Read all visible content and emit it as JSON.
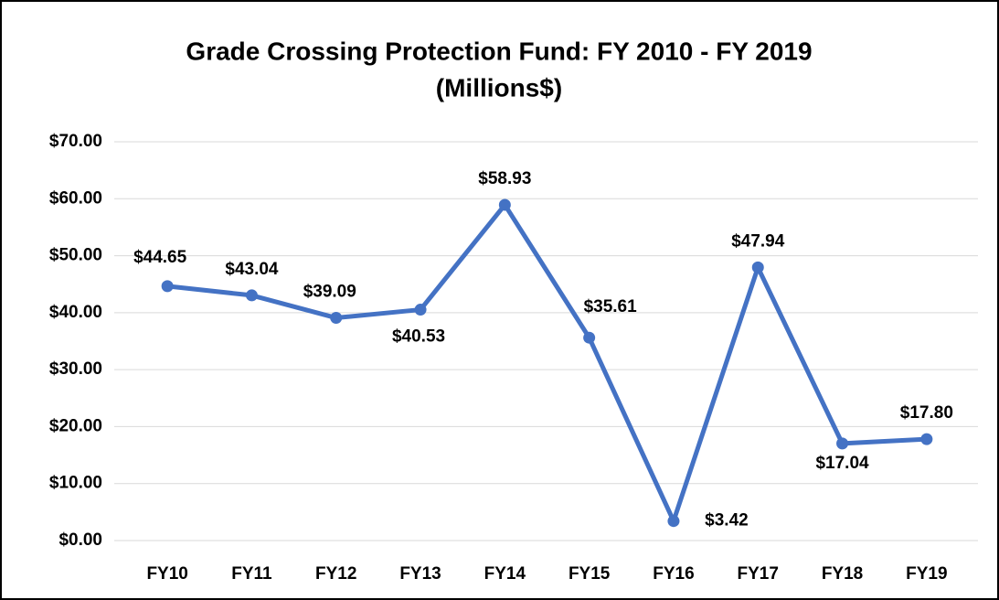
{
  "chart_data": {
    "type": "line",
    "title": "Grade Crossing Protection Fund: FY 2010 - FY 2019",
    "subtitle": "(Millions$)",
    "categories": [
      "FY10",
      "FY11",
      "FY12",
      "FY13",
      "FY14",
      "FY15",
      "FY16",
      "FY17",
      "FY18",
      "FY19"
    ],
    "series": [
      {
        "color": "#4472c4",
        "values": [
          44.65,
          43.04,
          39.09,
          40.53,
          58.93,
          35.61,
          3.42,
          47.94,
          17.04,
          17.8
        ],
        "value_labels": [
          "$44.65",
          "$43.04",
          "$39.09",
          "$40.53",
          "$58.93",
          "$35.61",
          "$3.42",
          "$47.94",
          "$17.04",
          "$17.80"
        ]
      }
    ],
    "ylim": [
      0,
      70
    ],
    "yticks": [
      {
        "value": 0,
        "label": "$0.00"
      },
      {
        "value": 10,
        "label": "$10.00"
      },
      {
        "value": 20,
        "label": "$20.00"
      },
      {
        "value": 30,
        "label": "$30.00"
      },
      {
        "value": 40,
        "label": "$40.00"
      },
      {
        "value": 50,
        "label": "$50.00"
      },
      {
        "value": 60,
        "label": "$60.00"
      },
      {
        "value": 70,
        "label": "$70.00"
      }
    ],
    "grid": true
  }
}
